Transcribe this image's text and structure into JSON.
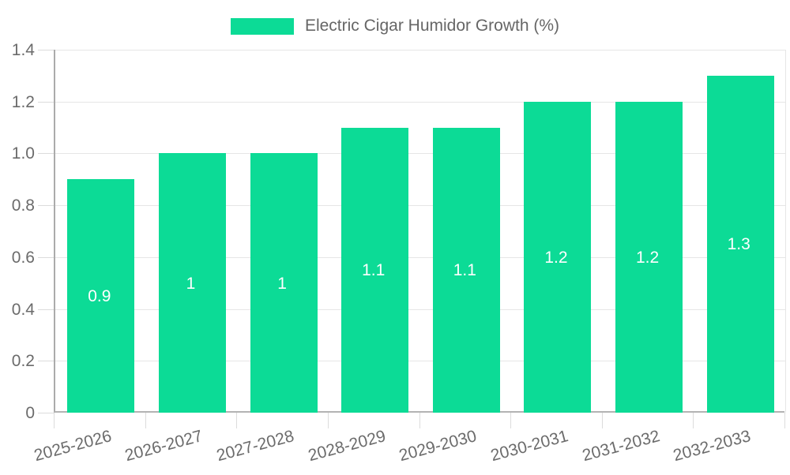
{
  "chart_data": {
    "type": "bar",
    "title": "",
    "legend": "Electric Cigar Humidor Growth (%)",
    "legend_position": "top",
    "categories": [
      "2025-2026",
      "2026-2027",
      "2027-2028",
      "2028-2029",
      "2029-2030",
      "2030-2031",
      "2031-2032",
      "2032-2033"
    ],
    "values": [
      0.9,
      1,
      1,
      1.1,
      1.1,
      1.2,
      1.2,
      1.3
    ],
    "value_labels": [
      "0.9",
      "1",
      "1",
      "1.1",
      "1.1",
      "1.2",
      "1.2",
      "1.3"
    ],
    "xlabel": "",
    "ylabel": "",
    "ylim": [
      0,
      1.4
    ],
    "yticks": [
      0,
      0.2,
      0.4,
      0.6,
      0.8,
      1,
      1.2,
      1.4
    ],
    "ytick_labels": [
      "0",
      "0.2",
      "0.4",
      "0.6",
      "0.8",
      "1.0",
      "1.2",
      "1.4"
    ],
    "grid": true,
    "colors": {
      "bar": "#0cdb96",
      "grid": "#e6e6e6",
      "axis": "#ababab",
      "tick": "#dcdcdc",
      "label_text": "#6b6b6b",
      "legend_text": "#666666",
      "value_text": "#ffffff",
      "background": "#ffffff"
    }
  }
}
